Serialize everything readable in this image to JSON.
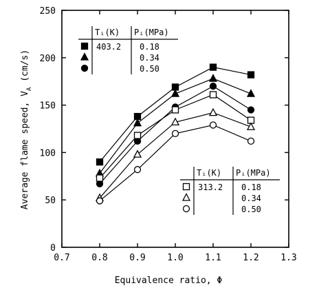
{
  "chart_data": {
    "type": "line",
    "xlabel": "Equivalence ratio, Φ",
    "ylabel": "Average flame speed, V",
    "ylabel_sub": "A",
    "ylabel_unit": " (cm/s)",
    "xlim": [
      0.7,
      1.3
    ],
    "ylim": [
      0,
      250
    ],
    "x_ticks": [
      "0.7",
      "0.8",
      "0.9",
      "1.0",
      "1.1",
      "1.2",
      "1.3"
    ],
    "y_ticks": [
      "0",
      "50",
      "100",
      "150",
      "200",
      "250"
    ],
    "x": [
      0.8,
      0.9,
      1.0,
      1.1,
      1.2
    ],
    "series": [
      {
        "Ti": "403.2",
        "Pi": "0.18",
        "marker": "square-filled",
        "values": [
          90,
          138,
          169,
          190,
          182
        ]
      },
      {
        "Ti": "403.2",
        "Pi": "0.34",
        "marker": "triangle-filled",
        "values": [
          78,
          131,
          162,
          178,
          162
        ]
      },
      {
        "Ti": "403.2",
        "Pi": "0.50",
        "marker": "circle-filled",
        "values": [
          67,
          112,
          148,
          170,
          145
        ]
      },
      {
        "Ti": "313.2",
        "Pi": "0.18",
        "marker": "square-open",
        "values": [
          73,
          118,
          145,
          161,
          134
        ]
      },
      {
        "Ti": "313.2",
        "Pi": "0.34",
        "marker": "triangle-open",
        "values": [
          52,
          98,
          132,
          142,
          127
        ]
      },
      {
        "Ti": "313.2",
        "Pi": "0.50",
        "marker": "circle-open",
        "values": [
          49,
          82,
          120,
          129,
          112
        ]
      }
    ],
    "legends": [
      {
        "header_t": "Tᵢ(K)",
        "header_p": "Pᵢ(MPa)",
        "t_value": "403.2",
        "rows": [
          0,
          1,
          2
        ]
      },
      {
        "header_t": "Tᵢ(K)",
        "header_p": "Pᵢ(MPa)",
        "t_value": "313.2",
        "rows": [
          3,
          4,
          5
        ]
      }
    ],
    "legend_placement": [
      "top-left",
      "bottom-right"
    ],
    "grid": false
  }
}
